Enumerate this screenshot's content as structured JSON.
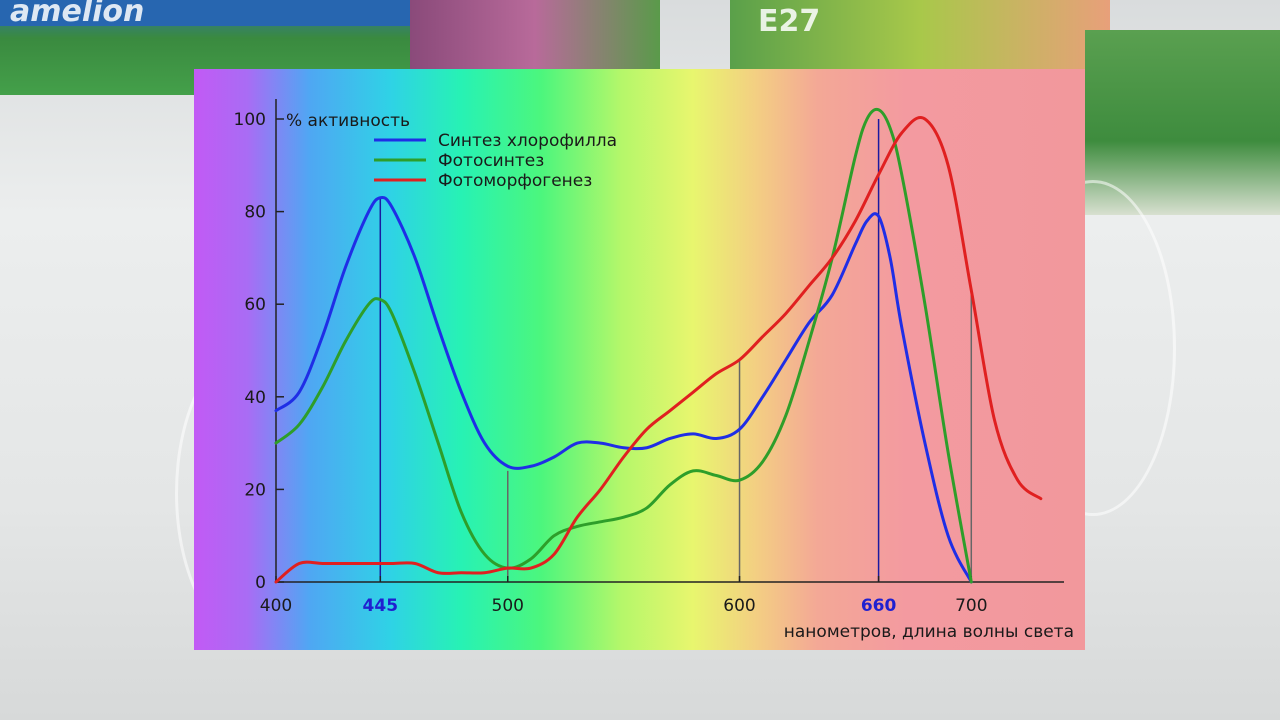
{
  "background": {
    "brand_text": "amelion",
    "box_label": "E27"
  },
  "chart_data": {
    "type": "line",
    "title": "",
    "ylabel": "% активность",
    "xlabel": "нанометров, длина волны света",
    "xlim": [
      400,
      740
    ],
    "ylim": [
      0,
      100
    ],
    "grid": false,
    "legend_placement": "top-left",
    "y_ticks": [
      0,
      20,
      40,
      60,
      80,
      100
    ],
    "x_ticks": [
      {
        "value": 400,
        "label": "400",
        "highlight": false
      },
      {
        "value": 445,
        "label": "445",
        "highlight": true
      },
      {
        "value": 500,
        "label": "500",
        "highlight": false
      },
      {
        "value": 600,
        "label": "600",
        "highlight": false
      },
      {
        "value": 660,
        "label": "660",
        "highlight": true
      },
      {
        "value": 700,
        "label": "700",
        "highlight": false
      }
    ],
    "marker_lines": [
      {
        "x": 445,
        "y": 83,
        "color": "#1a1aa0"
      },
      {
        "x": 500,
        "y": 24,
        "color": "#666666"
      },
      {
        "x": 600,
        "y": 48,
        "color": "#666666"
      },
      {
        "x": 660,
        "y": 100,
        "color": "#1a1aa0"
      },
      {
        "x": 700,
        "y": 63,
        "color": "#666666"
      }
    ],
    "series": [
      {
        "name": "Синтез хлорофилла",
        "color": "#1f2ee6",
        "x": [
          400,
          410,
          420,
          430,
          440,
          445,
          450,
          460,
          470,
          480,
          490,
          500,
          510,
          520,
          530,
          540,
          550,
          560,
          570,
          580,
          590,
          600,
          610,
          620,
          630,
          640,
          650,
          655,
          660,
          665,
          670,
          680,
          690,
          700
        ],
        "y": [
          37,
          41,
          53,
          68,
          80,
          83,
          81,
          70,
          55,
          41,
          30,
          25,
          25,
          27,
          30,
          30,
          29,
          29,
          31,
          32,
          31,
          33,
          40,
          48,
          56,
          62,
          73,
          78,
          79,
          70,
          55,
          30,
          10,
          0
        ]
      },
      {
        "name": "Фотосинтез",
        "color": "#2e9e2a",
        "x": [
          400,
          410,
          420,
          430,
          440,
          445,
          450,
          460,
          470,
          480,
          490,
          500,
          510,
          520,
          530,
          540,
          550,
          560,
          570,
          580,
          590,
          600,
          610,
          620,
          630,
          640,
          650,
          655,
          660,
          665,
          670,
          680,
          690,
          700
        ],
        "y": [
          30,
          34,
          42,
          52,
          60,
          61,
          58,
          45,
          30,
          15,
          6,
          3,
          5,
          10,
          12,
          13,
          14,
          16,
          21,
          24,
          23,
          22,
          26,
          36,
          52,
          70,
          92,
          100,
          102,
          98,
          88,
          60,
          28,
          0
        ]
      },
      {
        "name": "Фотоморфогенез",
        "color": "#e02020",
        "x": [
          400,
          410,
          420,
          430,
          440,
          450,
          460,
          470,
          480,
          490,
          500,
          510,
          520,
          530,
          540,
          550,
          560,
          570,
          580,
          590,
          600,
          610,
          620,
          630,
          640,
          650,
          660,
          670,
          680,
          690,
          700,
          710,
          720,
          730
        ],
        "y": [
          0,
          4,
          4,
          4,
          4,
          4,
          4,
          2,
          2,
          2,
          3,
          3,
          6,
          14,
          20,
          27,
          33,
          37,
          41,
          45,
          48,
          53,
          58,
          64,
          70,
          78,
          88,
          97,
          100,
          90,
          63,
          35,
          22,
          18
        ]
      }
    ]
  }
}
